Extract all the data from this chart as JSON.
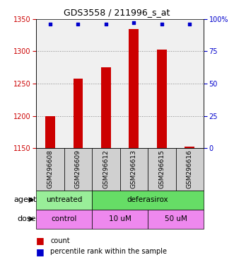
{
  "title": "GDS3558 / 211996_s_at",
  "samples": [
    "GSM296608",
    "GSM296609",
    "GSM296612",
    "GSM296613",
    "GSM296615",
    "GSM296616"
  ],
  "bar_values": [
    1200,
    1258,
    1275,
    1335,
    1303,
    1152
  ],
  "bar_bottom": 1150,
  "percentile_values": [
    96,
    96,
    96,
    97,
    96,
    96
  ],
  "ylim_left": [
    1150,
    1350
  ],
  "ylim_right": [
    0,
    100
  ],
  "yticks_left": [
    1150,
    1200,
    1250,
    1300,
    1350
  ],
  "yticks_right": [
    0,
    25,
    50,
    75,
    100
  ],
  "ytick_labels_right": [
    "0",
    "25",
    "50",
    "75",
    "100%"
  ],
  "bar_color": "#cc0000",
  "percentile_color": "#0000cc",
  "agent_groups": [
    {
      "label": "untreated",
      "start": 0,
      "end": 2,
      "color": "#99ee99"
    },
    {
      "label": "deferasirox",
      "start": 2,
      "end": 6,
      "color": "#66dd66"
    }
  ],
  "dose_groups": [
    {
      "label": "control",
      "start": 0,
      "end": 2,
      "color": "#ee88ee"
    },
    {
      "label": "10 uM",
      "start": 2,
      "end": 4,
      "color": "#ee88ee"
    },
    {
      "label": "50 uM",
      "start": 4,
      "end": 6,
      "color": "#ee88ee"
    }
  ],
  "grid_dotted_at": [
    1200,
    1250,
    1300
  ],
  "grid_color": "#888888",
  "plot_bg_color": "#f0f0f0",
  "left_label_color": "#cc0000",
  "right_label_color": "#0000cc",
  "sample_box_color": "#d0d0d0",
  "bar_width": 0.35
}
